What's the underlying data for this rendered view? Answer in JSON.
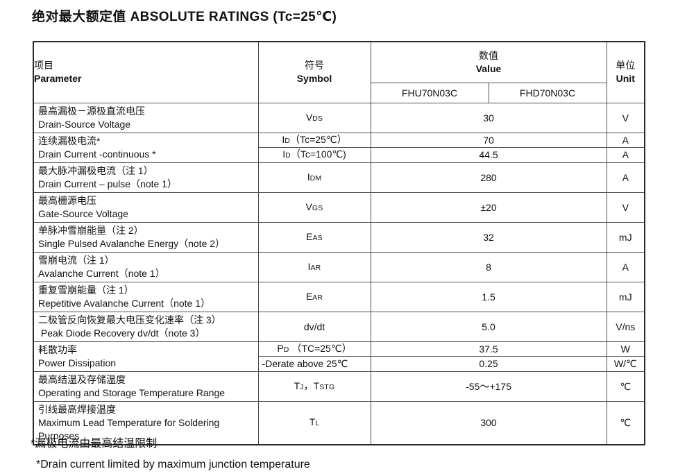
{
  "title": "绝对最大额定值 ABSOLUTE RATINGS (Tc=25℃)",
  "table": {
    "header": {
      "parameter_zh": "项目",
      "parameter_en": "Parameter",
      "symbol_zh": "符号",
      "symbol_en": "Symbol",
      "value_zh": "数值",
      "value_en": "Value",
      "unit_zh": "单位",
      "unit_en": "Unit",
      "columns": [
        "FHU70N03C",
        "FHD70N03C"
      ]
    },
    "rows": [
      {
        "param_zh": "最高漏极－源极直流电压",
        "param_en": "Drain-Source Voltage",
        "entries": [
          {
            "symbol": [
              {
                "t": "V"
              },
              {
                "s": "DS"
              }
            ],
            "value": "30",
            "unit": "V"
          }
        ]
      },
      {
        "param_zh": "连续漏极电流*",
        "param_en": "Drain Current -continuous *",
        "entries": [
          {
            "symbol": [
              {
                "t": "I"
              },
              {
                "s": "D"
              },
              {
                "t": "（Tc=25℃）"
              }
            ],
            "value": "70",
            "unit": "A"
          },
          {
            "symbol": [
              {
                "t": "I"
              },
              {
                "s": "D"
              },
              {
                "t": "（Tc=100℃)"
              }
            ],
            "value": "44.5",
            "unit": "A"
          }
        ]
      },
      {
        "param_zh": "最大脉冲漏极电流（注 1）",
        "param_en": "Drain Current – pulse（note 1）",
        "entries": [
          {
            "symbol": [
              {
                "t": "I"
              },
              {
                "s": "DM"
              }
            ],
            "value": "280",
            "unit": "A"
          }
        ]
      },
      {
        "param_zh": "最高栅源电压",
        "param_en": "Gate-Source Voltage",
        "entries": [
          {
            "symbol": [
              {
                "t": "V"
              },
              {
                "s": "GS"
              }
            ],
            "value": "±20",
            "unit": "V"
          }
        ]
      },
      {
        "param_zh": "单脉冲雪崩能量（注 2）",
        "param_en": "Single Pulsed Avalanche Energy（note 2）",
        "entries": [
          {
            "symbol": [
              {
                "t": "E"
              },
              {
                "s": "AS"
              }
            ],
            "value": "32",
            "unit": "mJ"
          }
        ]
      },
      {
        "param_zh": "雪崩电流（注 1）",
        "param_en": "Avalanche Current（note 1）",
        "entries": [
          {
            "symbol": [
              {
                "t": "I"
              },
              {
                "s": "AR"
              }
            ],
            "value": "8",
            "unit": "A"
          }
        ]
      },
      {
        "param_zh": "重复雪崩能量（注 1）",
        "param_en": "Repetitive Avalanche Current（note 1）",
        "entries": [
          {
            "symbol": [
              {
                "t": "E"
              },
              {
                "s": "AR"
              }
            ],
            "value": "1.5",
            "unit": "mJ"
          }
        ]
      },
      {
        "param_zh": "二极管反向恢复最大电压变化速率（注 3）",
        "param_en": " Peak Diode Recovery dv/dt（note 3）",
        "entries": [
          {
            "symbol": [
              {
                "t": "dv/dt"
              }
            ],
            "value": "5.0",
            "unit": "V/ns"
          }
        ]
      },
      {
        "param_zh": "耗散功率",
        "param_en": "Power Dissipation",
        "entries": [
          {
            "symbol": [
              {
                "t": "P"
              },
              {
                "s": "D"
              },
              {
                "t": " （TC=25℃）"
              }
            ],
            "value": "37.5",
            "unit": "W"
          },
          {
            "symbol": [
              {
                "t": "-Derate above 25℃"
              }
            ],
            "align": "left",
            "value": "0.25",
            "unit": "W/℃"
          }
        ]
      },
      {
        "param_zh": "最高结温及存储温度",
        "param_en": "Operating and Storage Temperature Range",
        "entries": [
          {
            "symbol": [
              {
                "t": "T"
              },
              {
                "s": "J"
              },
              {
                "t": "，T"
              },
              {
                "s": "STG"
              }
            ],
            "value": "-55～+175",
            "unit": "℃"
          }
        ]
      },
      {
        "param_zh": "引线最高焊接温度",
        "param_en": "Maximum Lead Temperature for Soldering Purposes",
        "tall": true,
        "entries": [
          {
            "symbol": [
              {
                "t": "T"
              },
              {
                "s": "L"
              }
            ],
            "value": "300",
            "unit": "℃"
          }
        ]
      }
    ]
  },
  "footnotes": [
    "*漏极电流由最高结温限制",
    "*Drain current limited by maximum junction temperature"
  ]
}
